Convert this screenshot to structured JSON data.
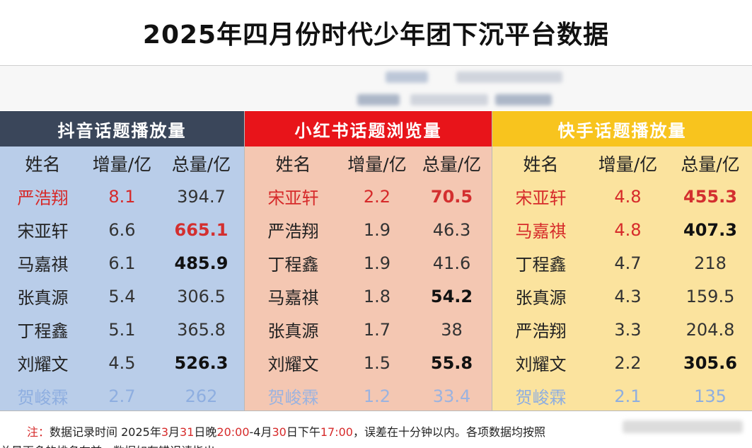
{
  "title": "2025年四月份时代少年团下沉平台数据",
  "col_headers": {
    "name": "姓名",
    "increase": "增量/亿",
    "total": "总量/亿"
  },
  "sections": {
    "douyin": {
      "heading": "抖音话题播放量",
      "rows": [
        {
          "name": "严浩翔",
          "inc": "8.1",
          "total": "394.7"
        },
        {
          "name": "宋亚轩",
          "inc": "6.6",
          "total": "665.1"
        },
        {
          "name": "马嘉祺",
          "inc": "6.1",
          "total": "485.9"
        },
        {
          "name": "张真源",
          "inc": "5.4",
          "total": "306.5"
        },
        {
          "name": "丁程鑫",
          "inc": "5.1",
          "total": "365.8"
        },
        {
          "name": "刘耀文",
          "inc": "4.5",
          "total": "526.3"
        },
        {
          "name": "贺峻霖",
          "inc": "2.7",
          "total": "262"
        }
      ]
    },
    "xiaohongshu": {
      "heading": "小红书话题浏览量",
      "rows": [
        {
          "name": "宋亚轩",
          "inc": "2.2",
          "total": "70.5"
        },
        {
          "name": "严浩翔",
          "inc": "1.9",
          "total": "46.3"
        },
        {
          "name": "丁程鑫",
          "inc": "1.9",
          "total": "41.6"
        },
        {
          "name": "马嘉祺",
          "inc": "1.8",
          "total": "54.2"
        },
        {
          "name": "张真源",
          "inc": "1.7",
          "total": "38"
        },
        {
          "name": "刘耀文",
          "inc": "1.5",
          "total": "55.8"
        },
        {
          "name": "贺峻霖",
          "inc": "1.2",
          "total": "33.4"
        }
      ]
    },
    "kuaishou": {
      "heading": "快手话题播放量",
      "rows": [
        {
          "name": "宋亚轩",
          "inc": "4.8",
          "total": "455.3"
        },
        {
          "name": "马嘉祺",
          "inc": "4.8",
          "total": "407.3"
        },
        {
          "name": "丁程鑫",
          "inc": "4.7",
          "total": "218"
        },
        {
          "name": "张真源",
          "inc": "4.3",
          "total": "159.5"
        },
        {
          "name": "严浩翔",
          "inc": "3.3",
          "total": "204.8"
        },
        {
          "name": "刘耀文",
          "inc": "2.2",
          "total": "305.6"
        },
        {
          "name": "贺峻霖",
          "inc": "2.1",
          "total": "135"
        }
      ]
    }
  },
  "footer": {
    "note_label": "注：",
    "line1_a": "数据记录时间 2025年",
    "m1": "3",
    "line1_b": "月",
    "d1": "31",
    "line1_c": "日晚",
    "t1": "20:00",
    "line1_d": "-4月",
    "d2": "30",
    "line1_e": "日下午",
    "t2": "17:00",
    "line1_f": "，误差在十分钟以内。各项数据均按照",
    "line2": "总量更多的排名在前，数据如有错误请指出"
  },
  "colors": {
    "douyin_header": "#3a465a",
    "douyin_body": "#b9cde9",
    "xhs_header": "#e8141a",
    "xhs_body": "#f4c7b2",
    "ks_header": "#f8c41e",
    "ks_body": "#fbe39e",
    "highlight_red": "#d62a2a"
  }
}
